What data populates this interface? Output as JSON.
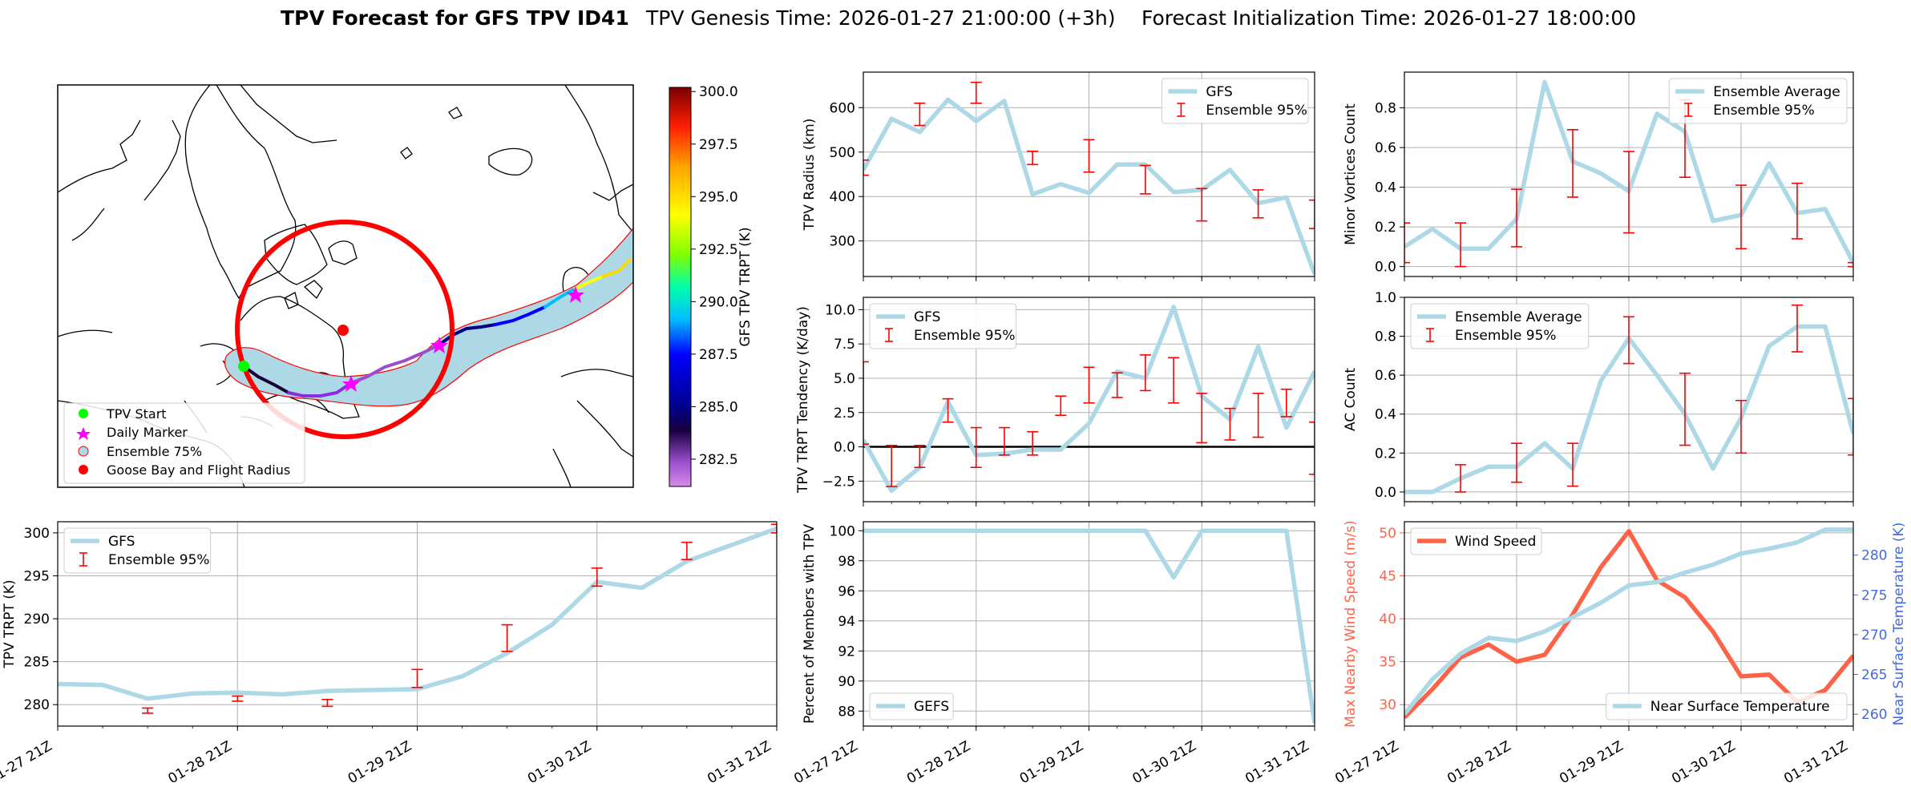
{
  "header": {
    "title_bold": "TPV Forecast for GFS TPV ID41",
    "genesis": "TPV Genesis Time: 2026-01-27 21:00:00 (+3h)",
    "init": "Forecast Initialization Time: 2026-01-27 18:00:00"
  },
  "time_ticks": [
    "01-27 21Z",
    "01-28 21Z",
    "01-29 21Z",
    "01-30 21Z",
    "01-31 21Z"
  ],
  "map": {
    "legend": [
      "TPV Start",
      "Daily Marker",
      "Ensemble 75%",
      "Goose Bay and Flight Radius"
    ],
    "colorbar_label": "GFS TPV TRPT (K)",
    "colorbar_ticks": [
      "282.5",
      "285.0",
      "287.5",
      "290.0",
      "292.5",
      "295.0",
      "297.5",
      "300.0"
    ],
    "colorbar_range": [
      281.2,
      300.2
    ],
    "colors": {
      "start": "#00ff00",
      "daily": "#ff00ff",
      "ensemble": "#add8e6",
      "goose": "#ff0000"
    }
  },
  "chart_data": [
    {
      "id": "radius",
      "type": "line",
      "xlabel": "",
      "ylabel": "TPV Radius (km)",
      "ylim": [
        220,
        680
      ],
      "yticks": [
        300,
        400,
        500,
        600
      ],
      "ytick_labels": [
        "300",
        "400",
        "500",
        "600"
      ],
      "legend": [
        "GFS",
        "Ensemble 95%"
      ],
      "legend_pos": "top-right",
      "series": [
        {
          "name": "GFS",
          "color": "#add8e6",
          "values": [
            460,
            575,
            545,
            618,
            570,
            615,
            405,
            428,
            408,
            472,
            472,
            410,
            415,
            460,
            385,
            398,
            225
          ]
        }
      ],
      "errorbars": [
        {
          "x": 0,
          "low": 448,
          "high": 482
        },
        {
          "x": 2,
          "low": 560,
          "high": 610
        },
        {
          "x": 4,
          "low": 610,
          "high": 657
        },
        {
          "x": 6,
          "low": 472,
          "high": 502
        },
        {
          "x": 8,
          "low": 455,
          "high": 528
        },
        {
          "x": 10,
          "low": 406,
          "high": 470
        },
        {
          "x": 12,
          "low": 345,
          "high": 418
        },
        {
          "x": 14,
          "low": 352,
          "high": 415
        },
        {
          "x": 16,
          "low": 328,
          "high": 392
        }
      ]
    },
    {
      "id": "minor",
      "type": "line",
      "xlabel": "",
      "ylabel": "Minor Vortices Count",
      "ylim": [
        -0.05,
        0.98
      ],
      "yticks": [
        0.0,
        0.2,
        0.4,
        0.6,
        0.8
      ],
      "ytick_labels": [
        "0.0",
        "0.2",
        "0.4",
        "0.6",
        "0.8"
      ],
      "legend": [
        "Ensemble Average",
        "Ensemble 95%"
      ],
      "legend_pos": "top-right",
      "series": [
        {
          "name": "Ensemble Average",
          "color": "#add8e6",
          "values": [
            0.1,
            0.19,
            0.09,
            0.09,
            0.24,
            0.93,
            0.53,
            0.47,
            0.38,
            0.77,
            0.68,
            0.23,
            0.26,
            0.52,
            0.27,
            0.29,
            0.02
          ]
        }
      ],
      "errorbars": [
        {
          "x": 0,
          "low": 0.02,
          "high": 0.22
        },
        {
          "x": 2,
          "low": 0.0,
          "high": 0.22
        },
        {
          "x": 4,
          "low": 0.1,
          "high": 0.39
        },
        {
          "x": 6,
          "low": 0.35,
          "high": 0.69
        },
        {
          "x": 8,
          "low": 0.17,
          "high": 0.58
        },
        {
          "x": 10,
          "low": 0.45,
          "high": 0.84
        },
        {
          "x": 12,
          "low": 0.09,
          "high": 0.41
        },
        {
          "x": 14,
          "low": 0.14,
          "high": 0.42
        },
        {
          "x": 16,
          "low": 0.0,
          "high": 0.02
        }
      ]
    },
    {
      "id": "tendency",
      "type": "line",
      "xlabel": "",
      "ylabel": "TPV TRPT Tendency (K/day)",
      "ylim": [
        -4.0,
        10.9
      ],
      "yticks": [
        -2.5,
        0.0,
        2.5,
        5.0,
        7.5,
        10.0
      ],
      "ytick_labels": [
        "−2.5",
        "0.0",
        "2.5",
        "5.0",
        "7.5",
        "10.0"
      ],
      "legend": [
        "GFS",
        "Ensemble 95%"
      ],
      "legend_pos": "top-left",
      "zero_line": true,
      "series": [
        {
          "name": "GFS",
          "color": "#add8e6",
          "values": [
            0.5,
            -3.2,
            -1.5,
            3.3,
            -0.6,
            -0.5,
            -0.2,
            -0.2,
            1.7,
            5.5,
            5.0,
            10.2,
            3.7,
            2.0,
            7.3,
            1.4,
            5.5
          ]
        }
      ],
      "errorbars": [
        {
          "x": 0,
          "low": 0.2,
          "high": 6.2
        },
        {
          "x": 1,
          "low": -2.9,
          "high": 0.1
        },
        {
          "x": 2,
          "low": -1.5,
          "high": 0.1
        },
        {
          "x": 3,
          "low": 1.8,
          "high": 3.5
        },
        {
          "x": 4,
          "low": -1.5,
          "high": 1.4
        },
        {
          "x": 5,
          "low": -0.6,
          "high": 1.4
        },
        {
          "x": 6,
          "low": -0.6,
          "high": 1.1
        },
        {
          "x": 7,
          "low": 2.3,
          "high": 3.7
        },
        {
          "x": 8,
          "low": 3.2,
          "high": 5.8
        },
        {
          "x": 9,
          "low": 3.6,
          "high": 5.4
        },
        {
          "x": 10,
          "low": 4.1,
          "high": 6.7
        },
        {
          "x": 11,
          "low": 3.2,
          "high": 6.5
        },
        {
          "x": 12,
          "low": 0.3,
          "high": 3.9
        },
        {
          "x": 13,
          "low": 0.5,
          "high": 2.8
        },
        {
          "x": 14,
          "low": 0.7,
          "high": 3.9
        },
        {
          "x": 15,
          "low": 2.2,
          "high": 4.2
        },
        {
          "x": 16,
          "low": -2.0,
          "high": 1.8
        }
      ]
    },
    {
      "id": "ac",
      "type": "line",
      "xlabel": "",
      "ylabel": "AC Count",
      "ylim": [
        -0.05,
        1.0
      ],
      "yticks": [
        0.0,
        0.2,
        0.4,
        0.6,
        0.8,
        1.0
      ],
      "ytick_labels": [
        "0.0",
        "0.2",
        "0.4",
        "0.6",
        "0.8",
        "1.0"
      ],
      "legend": [
        "Ensemble Average",
        "Ensemble 95%"
      ],
      "legend_pos": "top-left",
      "series": [
        {
          "name": "Ensemble Average",
          "color": "#add8e6",
          "values": [
            0.0,
            0.0,
            0.07,
            0.13,
            0.13,
            0.25,
            0.12,
            0.57,
            0.79,
            0.6,
            0.4,
            0.12,
            0.38,
            0.75,
            0.85,
            0.85,
            0.3
          ]
        }
      ],
      "errorbars": [
        {
          "x": 2,
          "low": 0.0,
          "high": 0.14
        },
        {
          "x": 4,
          "low": 0.05,
          "high": 0.25
        },
        {
          "x": 6,
          "low": 0.03,
          "high": 0.25
        },
        {
          "x": 8,
          "low": 0.66,
          "high": 0.9
        },
        {
          "x": 10,
          "low": 0.24,
          "high": 0.61
        },
        {
          "x": 12,
          "low": 0.2,
          "high": 0.47
        },
        {
          "x": 14,
          "low": 0.72,
          "high": 0.96
        },
        {
          "x": 16,
          "low": 0.19,
          "high": 0.48
        }
      ]
    },
    {
      "id": "trpt",
      "type": "line",
      "xlabel": "",
      "ylabel": "TPV TRPT (K)",
      "ylim": [
        277.5,
        301.3
      ],
      "yticks": [
        280,
        285,
        290,
        295,
        300
      ],
      "ytick_labels": [
        "280",
        "285",
        "290",
        "295",
        "300"
      ],
      "legend": [
        "GFS",
        "Ensemble 95%"
      ],
      "legend_pos": "top-left",
      "series": [
        {
          "name": "GFS",
          "color": "#add8e6",
          "values": [
            282.4,
            282.3,
            280.7,
            281.3,
            281.4,
            281.2,
            281.6,
            281.7,
            281.8,
            283.3,
            286.0,
            289.3,
            294.3,
            293.6,
            296.7,
            298.6,
            300.5
          ]
        }
      ],
      "errorbars": [
        {
          "x": 2,
          "low": 279.0,
          "high": 279.6
        },
        {
          "x": 4,
          "low": 280.4,
          "high": 281.0
        },
        {
          "x": 6,
          "low": 279.8,
          "high": 280.6
        },
        {
          "x": 8,
          "low": 282.0,
          "high": 284.1
        },
        {
          "x": 10,
          "low": 286.2,
          "high": 289.3
        },
        {
          "x": 12,
          "low": 293.8,
          "high": 295.9
        },
        {
          "x": 14,
          "low": 296.9,
          "high": 298.9
        },
        {
          "x": 16,
          "low": 300.0,
          "high": 301.0
        }
      ]
    },
    {
      "id": "percent",
      "type": "line",
      "xlabel": "",
      "ylabel": "Percent of Members with TPV",
      "ylim": [
        87.0,
        100.6
      ],
      "yticks": [
        88,
        90,
        92,
        94,
        96,
        98,
        100
      ],
      "ytick_labels": [
        "88",
        "90",
        "92",
        "94",
        "96",
        "98",
        "100"
      ],
      "legend": [
        "GEFS"
      ],
      "legend_pos": "bottom-left",
      "series": [
        {
          "name": "GEFS",
          "color": "#add8e6",
          "values": [
            100,
            100,
            100,
            100,
            100,
            100,
            100,
            100,
            100,
            100,
            100,
            96.9,
            100,
            100,
            100,
            100,
            87.2
          ]
        }
      ]
    },
    {
      "id": "wind",
      "type": "line",
      "xlabel": "",
      "ylabel": "Max Nearby Wind Speed (m/s)",
      "ylabel_color": "#ff6347",
      "ylim": [
        27.5,
        51.3
      ],
      "yticks": [
        30,
        35,
        40,
        45,
        50
      ],
      "ytick_labels": [
        "30",
        "35",
        "40",
        "45",
        "50"
      ],
      "ylabel_right": "Near Surface Temperature (K)",
      "ylabel_right_color": "#4169e1",
      "ylim_right": [
        258.5,
        284.2
      ],
      "yticks_right": [
        260,
        265,
        270,
        275,
        280
      ],
      "ytick_labels_right": [
        "260",
        "265",
        "270",
        "275",
        "280"
      ],
      "legend": [
        "Wind Speed"
      ],
      "legend_right": [
        "Near Surface Temperature"
      ],
      "series": [
        {
          "name": "Wind Speed",
          "axis": "left",
          "color": "#ff6347",
          "values": [
            28.5,
            31.8,
            35.5,
            37.0,
            35.0,
            35.8,
            40.5,
            46.0,
            50.2,
            44.5,
            42.5,
            38.5,
            33.3,
            33.5,
            30.3,
            31.7,
            35.7
          ]
        },
        {
          "name": "Near Surface Temperature",
          "axis": "right",
          "color": "#add8e6",
          "values": [
            260.0,
            264.4,
            267.6,
            269.6,
            269.2,
            270.4,
            272.2,
            274.0,
            276.2,
            276.6,
            277.8,
            278.8,
            280.2,
            280.8,
            281.6,
            283.2,
            283.2
          ]
        }
      ]
    }
  ]
}
